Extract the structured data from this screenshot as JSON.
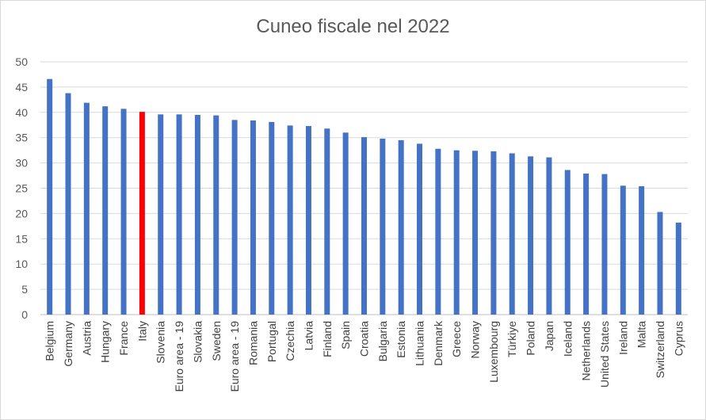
{
  "chart_data": {
    "type": "bar",
    "title": "Cuneo fiscale nel 2022",
    "xlabel": "",
    "ylabel": "",
    "ylim": [
      0,
      50
    ],
    "yticks": [
      0,
      5,
      10,
      15,
      20,
      25,
      30,
      35,
      40,
      45,
      50
    ],
    "grid": true,
    "legend": "none",
    "bar_color": "#4472C4",
    "highlight_color": "#FF0000",
    "highlight_category": "Italy",
    "categories": [
      "Belgium",
      "Germany",
      "Austria",
      "Hungary",
      "France",
      "Italy",
      "Slovenia",
      "Euro area - 19",
      "Slovakia",
      "Sweden",
      "Euro area - 19",
      "Romania",
      "Portugal",
      "Czechia",
      "Latvia",
      "Finland",
      "Spain",
      "Croatia",
      "Bulgaria",
      "Estonia",
      "Lithuania",
      "Denmark",
      "Greece",
      "Norway",
      "Luxembourg",
      "Türkiye",
      "Poland",
      "Japan",
      "Iceland",
      "Netherlands",
      "United States",
      "Ireland",
      "Malta",
      "Switzerland",
      "Cyprus"
    ],
    "values": [
      46.6,
      43.8,
      41.9,
      41.2,
      40.7,
      40.1,
      39.6,
      39.6,
      39.5,
      39.4,
      38.5,
      38.4,
      38.1,
      37.4,
      37.3,
      36.8,
      36.0,
      35.1,
      34.8,
      34.5,
      33.8,
      32.8,
      32.5,
      32.4,
      32.3,
      31.9,
      31.3,
      31.1,
      28.6,
      27.9,
      27.8,
      25.5,
      25.4,
      20.3,
      18.2
    ]
  }
}
